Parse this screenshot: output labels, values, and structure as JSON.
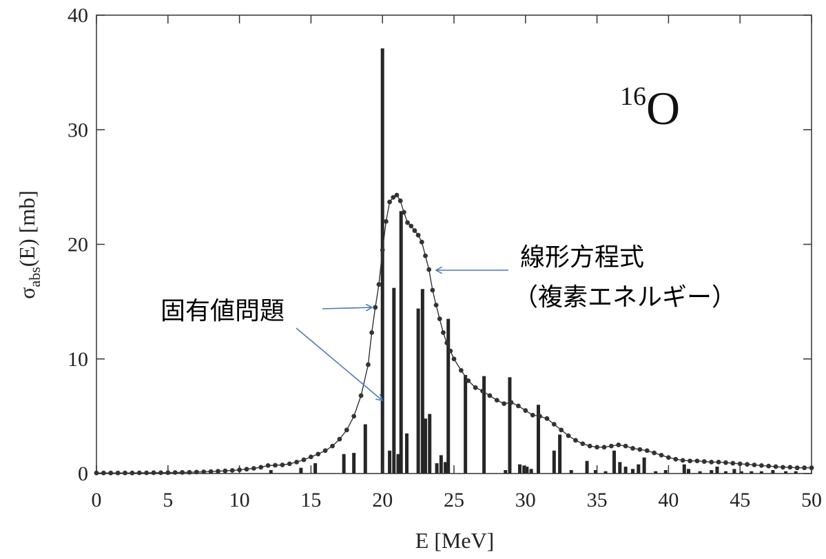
{
  "chart_data": {
    "type": "bar",
    "xlabel": "E [MeV]",
    "ylabel_main": "σ",
    "ylabel_sub": "abs",
    "ylabel_rest": "(E) [mb]",
    "xlim": [
      0,
      50
    ],
    "ylim": [
      0,
      40
    ],
    "x_ticks": [
      "0",
      "5",
      "10",
      "15",
      "20",
      "25",
      "30",
      "35",
      "40",
      "45",
      "50"
    ],
    "y_ticks": [
      "0",
      "10",
      "20",
      "30",
      "40"
    ],
    "grid": false,
    "nucleus_mass": "16",
    "nucleus_symbol": "O",
    "annotations": {
      "linear_line1": "線形方程式",
      "linear_line2": "（複素エネルギー）",
      "eigen": "固有値問題"
    },
    "series": [
      {
        "kind": "bars",
        "x": [
          12.2,
          14.3,
          15.3,
          17.3,
          18.0,
          18.8,
          20.0,
          20.5,
          20.8,
          21.1,
          21.3,
          21.7,
          22.5,
          22.8,
          23.0,
          23.3,
          23.8,
          24.1,
          24.4,
          24.6,
          25.8,
          27.1,
          28.6,
          28.9,
          29.6,
          29.9,
          30.1,
          30.4,
          30.9,
          32.0,
          32.4,
          33.2,
          34.3,
          34.9,
          35.6,
          36.2,
          36.6,
          37.0,
          37.5,
          37.9,
          38.3,
          39.1,
          39.8,
          41.1,
          41.4,
          42.2,
          43.0,
          43.4,
          44.0,
          44.6,
          45.1,
          45.8,
          46.5,
          47.3,
          48.2,
          48.9
        ],
        "values": [
          0.3,
          0.5,
          0.9,
          1.7,
          1.8,
          4.3,
          37.1,
          2.0,
          16.2,
          1.7,
          22.9,
          3.5,
          14.4,
          16.1,
          4.8,
          5.2,
          0.9,
          1.6,
          1.0,
          13.5,
          8.6,
          8.5,
          0.3,
          8.4,
          0.8,
          0.7,
          0.6,
          0.4,
          6.0,
          2.0,
          3.4,
          0.3,
          1.1,
          0.3,
          0.2,
          2.0,
          1.0,
          0.6,
          0.4,
          0.8,
          1.4,
          0.2,
          0.3,
          0.8,
          0.4,
          0.2,
          0.3,
          0.6,
          0.2,
          0.4,
          0.2,
          0.2,
          0.2,
          0.3,
          0.2,
          0.2
        ]
      },
      {
        "kind": "line_markers",
        "x": [
          0,
          0.5,
          1,
          1.5,
          2,
          2.5,
          3,
          3.5,
          4,
          4.5,
          5,
          5.5,
          6,
          6.5,
          7,
          7.5,
          8,
          8.5,
          9,
          9.5,
          10,
          10.5,
          11,
          11.5,
          12,
          12.5,
          13,
          13.5,
          14,
          14.5,
          15,
          15.5,
          16,
          16.5,
          17,
          17.5,
          18,
          18.5,
          19,
          19.25,
          19.5,
          19.75,
          20,
          20.25,
          20.5,
          20.75,
          21,
          21.25,
          21.5,
          21.75,
          22,
          22.25,
          22.5,
          22.75,
          23,
          23.25,
          23.5,
          23.75,
          24,
          24.25,
          24.5,
          24.75,
          25,
          25.5,
          26,
          26.5,
          27,
          27.5,
          28,
          28.5,
          29,
          29.5,
          30,
          30.5,
          31,
          31.5,
          32,
          32.5,
          33,
          33.5,
          34,
          34.5,
          35,
          35.5,
          36,
          36.5,
          37,
          37.5,
          38,
          38.5,
          39,
          39.5,
          40,
          40.5,
          41,
          41.5,
          42,
          42.5,
          43,
          43.5,
          44,
          44.5,
          45,
          45.5,
          46,
          46.5,
          47,
          47.5,
          48,
          48.5,
          49,
          49.5,
          50
        ],
        "values": [
          0.05,
          0.05,
          0.05,
          0.05,
          0.05,
          0.05,
          0.06,
          0.06,
          0.07,
          0.07,
          0.08,
          0.09,
          0.1,
          0.11,
          0.13,
          0.15,
          0.17,
          0.2,
          0.23,
          0.27,
          0.32,
          0.38,
          0.45,
          0.55,
          0.7,
          0.72,
          0.75,
          0.85,
          1.0,
          1.2,
          1.45,
          1.7,
          2.0,
          2.4,
          3.0,
          3.8,
          5.0,
          6.8,
          9.5,
          12.3,
          14.5,
          16.5,
          19.5,
          22.0,
          23.7,
          24.1,
          24.3,
          23.8,
          22.8,
          21.9,
          21.6,
          21.2,
          20.8,
          20.2,
          19.0,
          17.8,
          16.0,
          14.7,
          13.5,
          12.3,
          11.4,
          10.7,
          10.0,
          9.0,
          8.1,
          7.5,
          7.2,
          6.8,
          6.4,
          6.1,
          6.2,
          5.9,
          5.5,
          5.1,
          5.0,
          4.8,
          4.3,
          3.8,
          3.3,
          2.9,
          2.6,
          2.4,
          2.3,
          2.3,
          2.4,
          2.5,
          2.4,
          2.2,
          2.1,
          2.0,
          1.8,
          1.6,
          1.4,
          1.25,
          1.15,
          1.1,
          1.1,
          1.05,
          1.0,
          1.0,
          0.95,
          0.9,
          0.85,
          0.8,
          0.75,
          0.7,
          0.65,
          0.6,
          0.55,
          0.55,
          0.5,
          0.5,
          0.5
        ]
      }
    ]
  }
}
